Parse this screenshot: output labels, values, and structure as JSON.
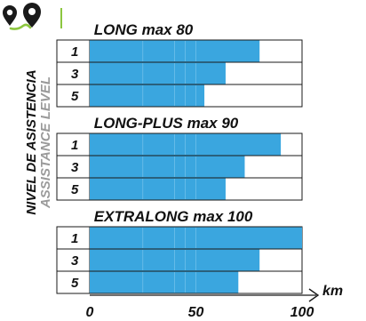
{
  "ylabel": "NIVEL DE ASISTENCIA",
  "ylabel_secondary": "ASSISTANCE LEVEL",
  "icon": "location-pins-icon",
  "colors": {
    "bar": "#3aa6df",
    "bar_divider": "#6ec0ea",
    "icon_dark": "#1a1a1a",
    "icon_accent": "#8cc63f"
  },
  "chart_data": {
    "type": "bar",
    "orientation": "horizontal",
    "xlabel": "km",
    "xlim": [
      0,
      100
    ],
    "x_ticks": [
      "0",
      "50",
      "100"
    ],
    "panels": [
      {
        "title": "LONG max 80",
        "bars": [
          {
            "level": "1",
            "value": 80
          },
          {
            "level": "3",
            "value": 64
          },
          {
            "level": "5",
            "value": 54
          }
        ]
      },
      {
        "title": "LONG-PLUS max 90",
        "bars": [
          {
            "level": "1",
            "value": 90
          },
          {
            "level": "3",
            "value": 73
          },
          {
            "level": "5",
            "value": 64
          }
        ]
      },
      {
        "title": "EXTRALONG max 100",
        "bars": [
          {
            "level": "1",
            "value": 100
          },
          {
            "level": "3",
            "value": 80
          },
          {
            "level": "5",
            "value": 70
          }
        ]
      }
    ]
  }
}
